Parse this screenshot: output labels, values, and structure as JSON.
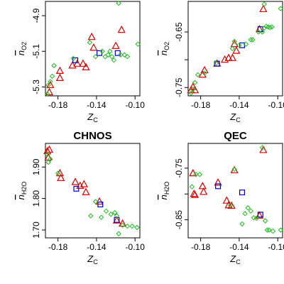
{
  "chart_data": [
    {
      "type": "scatter",
      "title": "",
      "xlabel": "Z",
      "xlabel_sub": "C",
      "ylabel": "n",
      "ylabel_sub": "O2",
      "xlim": [
        -0.193,
        -0.095
      ],
      "ylim": [
        -5.35,
        -4.82
      ],
      "xticks": [
        -0.18,
        -0.14,
        -0.1
      ],
      "xtick_labels": [
        "-0.18",
        "-0.14",
        "-0.10"
      ],
      "yticks": [
        -5.3,
        -5.1,
        -4.9
      ],
      "ytick_labels": [
        "-5.3",
        "-5.1",
        "-4.9"
      ],
      "grid": false,
      "series": [
        {
          "marker": "triangle",
          "color": "#dd0000",
          "points": [
            [
              -0.189,
              -5.33
            ],
            [
              -0.188,
              -5.29
            ],
            [
              -0.178,
              -5.25
            ],
            [
              -0.178,
              -5.21
            ],
            [
              -0.165,
              -5.18
            ],
            [
              -0.16,
              -5.17
            ],
            [
              -0.154,
              -5.17
            ],
            [
              -0.151,
              -5.19
            ],
            [
              -0.145,
              -5.02
            ],
            [
              -0.143,
              -5.08
            ],
            [
              -0.12,
              -5.07
            ],
            [
              -0.114,
              -4.98
            ]
          ]
        },
        {
          "marker": "square",
          "color": "#0000cc",
          "points": [
            [
              -0.162,
              -5.15
            ],
            [
              -0.137,
              -5.11
            ],
            [
              -0.118,
              -5.11
            ]
          ]
        },
        {
          "marker": "diamond",
          "color": "#22bb22",
          "points": [
            [
              -0.191,
              -5.34
            ],
            [
              -0.19,
              -5.29
            ],
            [
              -0.188,
              -5.27
            ],
            [
              -0.186,
              -5.24
            ],
            [
              -0.184,
              -5.18
            ],
            [
              -0.164,
              -5.14
            ],
            [
              -0.147,
              -5.05
            ],
            [
              -0.141,
              -5.13
            ],
            [
              -0.134,
              -5.1
            ],
            [
              -0.131,
              -5.13
            ],
            [
              -0.128,
              -5.12
            ],
            [
              -0.126,
              -5.1
            ],
            [
              -0.124,
              -5.13
            ],
            [
              -0.122,
              -5.15
            ],
            [
              -0.117,
              -4.83
            ],
            [
              -0.115,
              -5.12
            ],
            [
              -0.111,
              -5.12
            ],
            [
              -0.108,
              -5.13
            ],
            [
              -0.097,
              -5.06
            ]
          ]
        }
      ]
    },
    {
      "type": "scatter",
      "title": "",
      "xlabel": "Z",
      "xlabel_sub": "C",
      "ylabel": "n",
      "ylabel_sub": "O2",
      "xlim": [
        -0.193,
        -0.095
      ],
      "ylim": [
        -0.765,
        -0.595
      ],
      "xticks": [
        -0.18,
        -0.14,
        -0.1
      ],
      "xtick_labels": [
        "-0.18",
        "-0.14",
        "-0.10"
      ],
      "yticks": [
        -0.75,
        -0.7,
        -0.65
      ],
      "ytick_labels": [
        "-0.75",
        "",
        "-0.65"
      ],
      "grid": false,
      "series": [
        {
          "marker": "triangle",
          "color": "#dd0000",
          "points": [
            [
              -0.19,
              -0.755
            ],
            [
              -0.188,
              -0.749
            ],
            [
              -0.186,
              -0.755
            ],
            [
              -0.178,
              -0.727
            ],
            [
              -0.176,
              -0.719
            ],
            [
              -0.163,
              -0.707
            ],
            [
              -0.155,
              -0.7
            ],
            [
              -0.151,
              -0.697
            ],
            [
              -0.147,
              -0.697
            ],
            [
              -0.145,
              -0.672
            ],
            [
              -0.143,
              -0.684
            ],
            [
              -0.119,
              -0.645
            ],
            [
              -0.115,
              -0.609
            ]
          ]
        },
        {
          "marker": "square",
          "color": "#0000cc",
          "points": [
            [
              -0.163,
              -0.707
            ],
            [
              -0.137,
              -0.674
            ],
            [
              -0.118,
              -0.645
            ]
          ]
        },
        {
          "marker": "diamond",
          "color": "#22bb22",
          "points": [
            [
              -0.19,
              -0.76
            ],
            [
              -0.188,
              -0.753
            ],
            [
              -0.186,
              -0.741
            ],
            [
              -0.183,
              -0.727
            ],
            [
              -0.176,
              -0.724
            ],
            [
              -0.164,
              -0.706
            ],
            [
              -0.147,
              -0.68
            ],
            [
              -0.145,
              -0.667
            ],
            [
              -0.14,
              -0.674
            ],
            [
              -0.133,
              -0.672
            ],
            [
              -0.128,
              -0.664
            ],
            [
              -0.126,
              -0.664
            ],
            [
              -0.12,
              -0.65
            ],
            [
              -0.116,
              -0.65
            ],
            [
              -0.114,
              -0.643
            ],
            [
              -0.112,
              -0.64
            ],
            [
              -0.11,
              -0.641
            ],
            [
              -0.108,
              -0.642
            ],
            [
              -0.106,
              -0.641
            ],
            [
              -0.114,
              -0.6
            ],
            [
              -0.097,
              -0.608
            ]
          ]
        }
      ]
    },
    {
      "type": "scatter",
      "title": "CHNOS",
      "xlabel": "Z",
      "xlabel_sub": "C",
      "ylabel": "n",
      "ylabel_sub": "H2O",
      "xlim": [
        -0.193,
        -0.095
      ],
      "ylim": [
        1.675,
        1.975
      ],
      "xticks": [
        -0.18,
        -0.14,
        -0.1
      ],
      "xtick_labels": [
        "-0.18",
        "-0.14",
        "-0.10"
      ],
      "yticks": [
        1.7,
        1.8,
        1.9
      ],
      "ytick_labels": [
        "1.70",
        "1.80",
        "1.90"
      ],
      "grid": false,
      "series": [
        {
          "marker": "triangle",
          "color": "#dd0000",
          "points": [
            [
              -0.191,
              1.95
            ],
            [
              -0.19,
              1.93
            ],
            [
              -0.189,
              1.955
            ],
            [
              -0.178,
              1.88
            ],
            [
              -0.177,
              1.865
            ],
            [
              -0.162,
              1.852
            ],
            [
              -0.157,
              1.84
            ],
            [
              -0.153,
              1.845
            ],
            [
              -0.151,
              1.82
            ],
            [
              -0.137,
              1.79
            ],
            [
              -0.119,
              1.73
            ],
            [
              -0.113,
              1.72
            ]
          ]
        },
        {
          "marker": "square",
          "color": "#0000cc",
          "points": [
            [
              -0.161,
              1.831
            ],
            [
              -0.136,
              1.781
            ],
            [
              -0.119,
              1.732
            ]
          ]
        },
        {
          "marker": "diamond",
          "color": "#22bb22",
          "points": [
            [
              -0.191,
              1.94
            ],
            [
              -0.19,
              1.915
            ],
            [
              -0.188,
              1.925
            ],
            [
              -0.18,
              1.88
            ],
            [
              -0.146,
              1.745
            ],
            [
              -0.141,
              1.79
            ],
            [
              -0.135,
              1.74
            ],
            [
              -0.13,
              1.76
            ],
            [
              -0.125,
              1.75
            ],
            [
              -0.121,
              1.755
            ],
            [
              -0.119,
              1.745
            ],
            [
              -0.117,
              1.688
            ],
            [
              -0.113,
              1.715
            ],
            [
              -0.108,
              1.712
            ],
            [
              -0.103,
              1.712
            ],
            [
              -0.098,
              1.708
            ]
          ]
        }
      ]
    },
    {
      "type": "scatter",
      "title": "QEC",
      "xlabel": "Z",
      "xlabel_sub": "C",
      "ylabel": "n",
      "ylabel_sub": "H2O",
      "xlim": [
        -0.193,
        -0.095
      ],
      "ylim": [
        -0.885,
        -0.702
      ],
      "xticks": [
        -0.18,
        -0.14,
        -0.1
      ],
      "xtick_labels": [
        "-0.18",
        "-0.14",
        "-0.10"
      ],
      "yticks": [
        -0.85,
        -0.8,
        -0.75
      ],
      "ytick_labels": [
        "-0.85",
        "",
        "-0.75"
      ],
      "grid": false,
      "series": [
        {
          "marker": "triangle",
          "color": "#dd0000",
          "points": [
            [
              -0.188,
              -0.76
            ],
            [
              -0.187,
              -0.8
            ],
            [
              -0.186,
              -0.802
            ],
            [
              -0.178,
              -0.785
            ],
            [
              -0.177,
              -0.796
            ],
            [
              -0.162,
              -0.778
            ],
            [
              -0.153,
              -0.813
            ],
            [
              -0.151,
              -0.822
            ],
            [
              -0.148,
              -0.823
            ],
            [
              -0.145,
              -0.754
            ],
            [
              -0.119,
              -0.842
            ],
            [
              -0.115,
              -0.715
            ]
          ]
        },
        {
          "marker": "square",
          "color": "#0000cc",
          "points": [
            [
              -0.162,
              -0.785
            ],
            [
              -0.137,
              -0.797
            ],
            [
              -0.118,
              -0.84
            ]
          ]
        },
        {
          "marker": "diamond",
          "color": "#22bb22",
          "points": [
            [
              -0.189,
              -0.786
            ],
            [
              -0.185,
              -0.762
            ],
            [
              -0.181,
              -0.762
            ],
            [
              -0.149,
              -0.822
            ],
            [
              -0.145,
              -0.752
            ],
            [
              -0.137,
              -0.858
            ],
            [
              -0.134,
              -0.838
            ],
            [
              -0.131,
              -0.827
            ],
            [
              -0.128,
              -0.833
            ],
            [
              -0.125,
              -0.846
            ],
            [
              -0.122,
              -0.847
            ],
            [
              -0.116,
              -0.71
            ],
            [
              -0.113,
              -0.852
            ],
            [
              -0.111,
              -0.87
            ],
            [
              -0.109,
              -0.87
            ],
            [
              -0.105,
              -0.872
            ],
            [
              -0.097,
              -0.87
            ]
          ]
        }
      ]
    }
  ]
}
